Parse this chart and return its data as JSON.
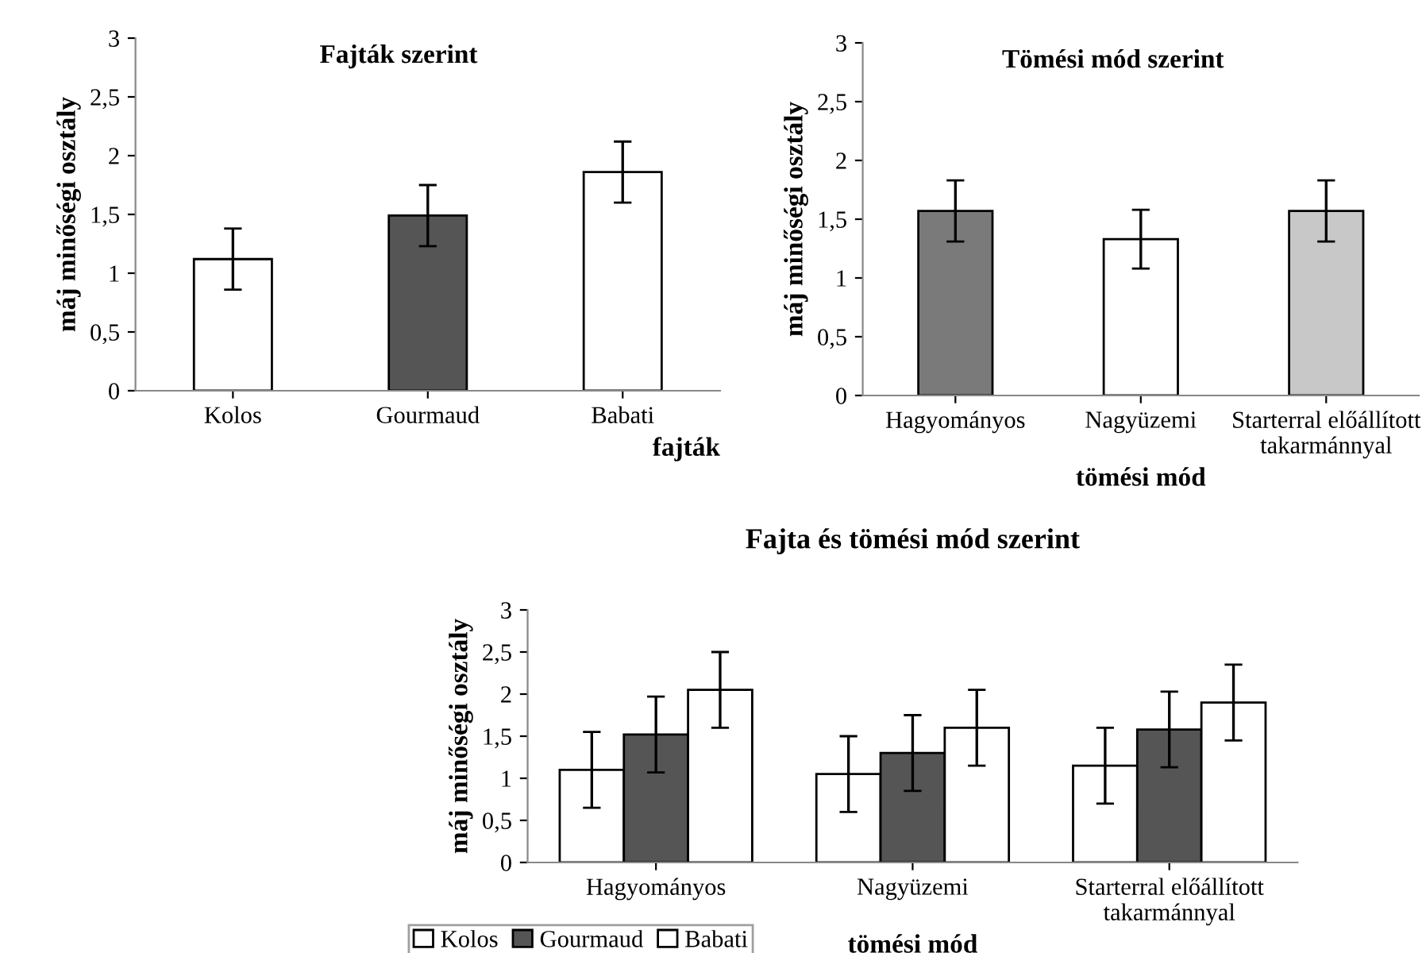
{
  "chart_data": [
    {
      "type": "bar",
      "title": "Fajták szerint",
      "xlabel": "fajták",
      "ylabel": "máj minőségi osztály",
      "categories": [
        "Kolos",
        "Gourmaud",
        "Babati"
      ],
      "values": [
        1.12,
        1.49,
        1.86
      ],
      "errors": [
        0.26,
        0.26,
        0.26
      ],
      "colors": [
        "#ffffff",
        "#555555",
        "#ffffff"
      ],
      "ylim": [
        0,
        3
      ],
      "yticks": [
        0,
        {
          "value": 0.5,
          "label": "0,5"
        },
        1,
        {
          "value": 1.5,
          "label": "1,5"
        },
        2,
        {
          "value": 2.5,
          "label": "2,5"
        },
        3
      ],
      "grid": false,
      "legend": false
    },
    {
      "type": "bar",
      "title": "Tömési mód szerint",
      "xlabel": "tömési mód",
      "ylabel": "máj minőségi osztály",
      "categories": [
        "Hagyományos",
        "Nagyüzemi",
        "Starterral előállított\ntakarmánnyal"
      ],
      "values": [
        1.57,
        1.33,
        1.57
      ],
      "errors": [
        0.26,
        0.25,
        0.26
      ],
      "colors": [
        "#7a7a7a",
        "#ffffff",
        "#c8c8c8"
      ],
      "ylim": [
        0,
        3
      ],
      "yticks": [
        0,
        {
          "value": 0.5,
          "label": "0,5"
        },
        1,
        {
          "value": 1.5,
          "label": "1,5"
        },
        2,
        {
          "value": 2.5,
          "label": "2,5"
        },
        3
      ],
      "grid": false,
      "legend": false
    },
    {
      "type": "bar",
      "title": "Fajta és tömési mód szerint",
      "xlabel": "tömési mód",
      "ylabel": "máj minőségi osztály",
      "categories": [
        "Hagyományos",
        "Nagyüzemi",
        "Starterral előállított\ntakarmánnyal"
      ],
      "series": [
        {
          "name": "Kolos",
          "color": "#ffffff",
          "values": [
            1.1,
            1.05,
            1.15
          ],
          "errors": [
            0.45,
            0.45,
            0.45
          ]
        },
        {
          "name": "Gourmaud",
          "color": "#555555",
          "values": [
            1.52,
            1.3,
            1.58
          ],
          "errors": [
            0.45,
            0.45,
            0.45
          ]
        },
        {
          "name": "Babati",
          "color": "#ffffff",
          "values": [
            2.05,
            1.6,
            1.9
          ],
          "errors": [
            0.45,
            0.45,
            0.45
          ]
        }
      ],
      "ylim": [
        0,
        3
      ],
      "yticks": [
        0,
        {
          "value": 0.5,
          "label": "0,5"
        },
        1,
        {
          "value": 1.5,
          "label": "1,5"
        },
        2,
        {
          "value": 2.5,
          "label": "2,5"
        },
        3
      ],
      "grid": false,
      "legend": "bottom left"
    }
  ]
}
